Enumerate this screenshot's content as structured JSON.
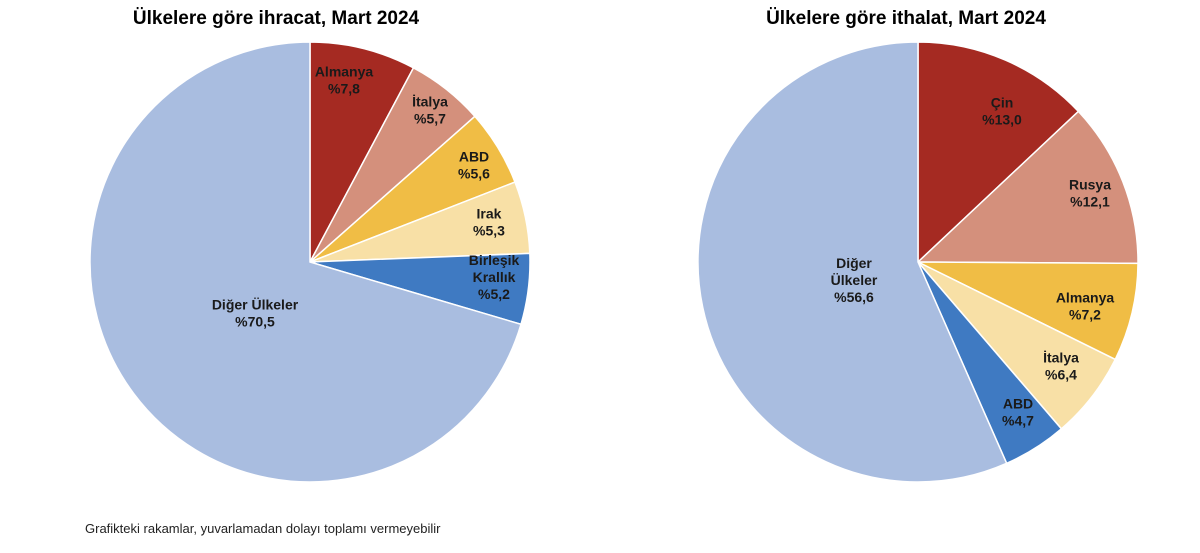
{
  "chart_data": [
    {
      "type": "pie",
      "title": "Ülkelere göre ihracat, Mart 2024",
      "slices": [
        {
          "name": "Almanya",
          "label_lines": [
            "Almanya"
          ],
          "value_text": "%7,8",
          "value": 7.8,
          "color": "#a52a22"
        },
        {
          "name": "İtalya",
          "label_lines": [
            "İtalya"
          ],
          "value_text": "%5,7",
          "value": 5.7,
          "color": "#d4907c"
        },
        {
          "name": "ABD",
          "label_lines": [
            "ABD"
          ],
          "value_text": "%5,6",
          "value": 5.6,
          "color": "#f0bd45"
        },
        {
          "name": "Irak",
          "label_lines": [
            "Irak"
          ],
          "value_text": "%5,3",
          "value": 5.3,
          "color": "#f8e0a6"
        },
        {
          "name": "Birleşik Krallık",
          "label_lines": [
            "Birleşik",
            "Krallık"
          ],
          "value_text": "%5,2",
          "value": 5.2,
          "color": "#3f7ac2"
        },
        {
          "name": "Diğer Ülkeler",
          "label_lines": [
            "Diğer Ülkeler"
          ],
          "value_text": "%70,5",
          "value": 70.5,
          "color": "#a9bde0"
        }
      ]
    },
    {
      "type": "pie",
      "title": "Ülkelere göre ithalat, Mart 2024",
      "slices": [
        {
          "name": "Çin",
          "label_lines": [
            "Çin"
          ],
          "value_text": "%13,0",
          "value": 13.0,
          "color": "#a52a22"
        },
        {
          "name": "Rusya",
          "label_lines": [
            "Rusya"
          ],
          "value_text": "%12,1",
          "value": 12.1,
          "color": "#d4907c"
        },
        {
          "name": "Almanya",
          "label_lines": [
            "Almanya"
          ],
          "value_text": "%7,2",
          "value": 7.2,
          "color": "#f0bd45"
        },
        {
          "name": "İtalya",
          "label_lines": [
            "İtalya"
          ],
          "value_text": "%6,4",
          "value": 6.4,
          "color": "#f8e0a6"
        },
        {
          "name": "ABD",
          "label_lines": [
            "ABD"
          ],
          "value_text": "%4,7",
          "value": 4.7,
          "color": "#3f7ac2"
        },
        {
          "name": "Diğer Ülkeler",
          "label_lines": [
            "Diğer",
            "Ülkeler"
          ],
          "value_text": "%56,6",
          "value": 56.6,
          "color": "#a9bde0"
        }
      ]
    }
  ],
  "footnote": "Grafikteki rakamlar, yuvarlamadan dolayı toplamı vermeyebilir"
}
